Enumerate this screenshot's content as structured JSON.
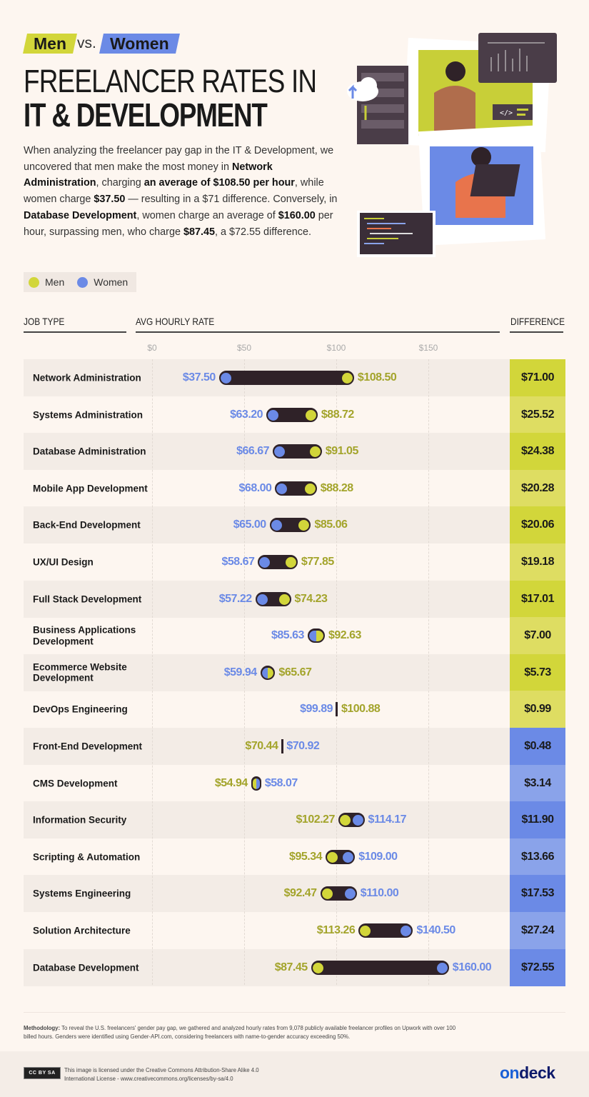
{
  "header": {
    "tag_men": "Men",
    "tag_vs": "vs.",
    "tag_women": "Women",
    "title_line1": "FREELANCER RATES IN",
    "title_line2": "IT & DEVELOPMENT"
  },
  "intro": {
    "p1": "When analyzing the freelancer pay gap in the IT & Development, we uncovered that men make the most money in ",
    "b1": "Network Administration",
    "p2": ", charging ",
    "b2": "an average of $108.50 per hour",
    "p3": ", while women charge ",
    "b3": "$37.50",
    "p4": " — resulting in a $71 difference. Conversely, in ",
    "b4": "Database Development",
    "p5": ", women charge an average of ",
    "b5": "$160.00",
    "p6": " per hour, surpassing men, who charge ",
    "b6": "$87.45",
    "p7": ", a $72.55 difference."
  },
  "colors": {
    "men": "#d2d63a",
    "men_light": "#dedd62",
    "men_text": "#a3a42b",
    "women": "#6b8ae6",
    "women_light": "#8aa3ea",
    "bar": "#2f2228"
  },
  "chart_data": {
    "type": "dumbbell",
    "legend": [
      "Men",
      "Women"
    ],
    "legend_position": "top-left",
    "columns": {
      "job": "JOB TYPE",
      "rate": "AVG HOURLY RATE",
      "diff": "DIFFERENCE"
    },
    "x_ticks": [
      "$0",
      "$50",
      "$100",
      "$150"
    ],
    "x_tick_values": [
      0,
      50,
      100,
      150
    ],
    "xlim": [
      0,
      175
    ],
    "grid": true,
    "rows": [
      {
        "job": "Network Administration",
        "men": 108.5,
        "women": 37.5,
        "men_label": "$108.50",
        "women_label": "$37.50",
        "diff": "$71.00",
        "higher": "men"
      },
      {
        "job": "Systems Administration",
        "men": 88.72,
        "women": 63.2,
        "men_label": "$88.72",
        "women_label": "$63.20",
        "diff": "$25.52",
        "higher": "men"
      },
      {
        "job": "Database Administration",
        "men": 91.05,
        "women": 66.67,
        "men_label": "$91.05",
        "women_label": "$66.67",
        "diff": "$24.38",
        "higher": "men"
      },
      {
        "job": "Mobile App Development",
        "men": 88.28,
        "women": 68.0,
        "men_label": "$88.28",
        "women_label": "$68.00",
        "diff": "$20.28",
        "higher": "men"
      },
      {
        "job": "Back-End Development",
        "men": 85.06,
        "women": 65.0,
        "men_label": "$85.06",
        "women_label": "$65.00",
        "diff": "$20.06",
        "higher": "men"
      },
      {
        "job": "UX/UI Design",
        "men": 77.85,
        "women": 58.67,
        "men_label": "$77.85",
        "women_label": "$58.67",
        "diff": "$19.18",
        "higher": "men"
      },
      {
        "job": "Full Stack Development",
        "men": 74.23,
        "women": 57.22,
        "men_label": "$74.23",
        "women_label": "$57.22",
        "diff": "$17.01",
        "higher": "men"
      },
      {
        "job": "Business Applications Development",
        "men": 92.63,
        "women": 85.63,
        "men_label": "$92.63",
        "women_label": "$85.63",
        "diff": "$7.00",
        "higher": "men"
      },
      {
        "job": "Ecommerce Website Development",
        "men": 65.67,
        "women": 59.94,
        "men_label": "$65.67",
        "women_label": "$59.94",
        "diff": "$5.73",
        "higher": "men"
      },
      {
        "job": "DevOps Engineering",
        "men": 100.88,
        "women": 99.89,
        "men_label": "$100.88",
        "women_label": "$99.89",
        "diff": "$0.99",
        "higher": "men"
      },
      {
        "job": "Front-End Development",
        "men": 70.44,
        "women": 70.92,
        "men_label": "$70.44",
        "women_label": "$70.92",
        "diff": "$0.48",
        "higher": "women"
      },
      {
        "job": "CMS Development",
        "men": 54.94,
        "women": 58.07,
        "men_label": "$54.94",
        "women_label": "$58.07",
        "diff": "$3.14",
        "higher": "women"
      },
      {
        "job": "Information Security",
        "men": 102.27,
        "women": 114.17,
        "men_label": "$102.27",
        "women_label": "$114.17",
        "diff": "$11.90",
        "higher": "women"
      },
      {
        "job": "Scripting & Automation",
        "men": 95.34,
        "women": 109.0,
        "men_label": "$95.34",
        "women_label": "$109.00",
        "diff": "$13.66",
        "higher": "women"
      },
      {
        "job": "Systems Engineering",
        "men": 92.47,
        "women": 110.0,
        "men_label": "$92.47",
        "women_label": "$110.00",
        "diff": "$17.53",
        "higher": "women"
      },
      {
        "job": "Solution Architecture",
        "men": 113.26,
        "women": 140.5,
        "men_label": "$113.26",
        "women_label": "$140.50",
        "diff": "$27.24",
        "higher": "women"
      },
      {
        "job": "Database Development",
        "men": 87.45,
        "women": 160.0,
        "men_label": "$87.45",
        "women_label": "$160.00",
        "diff": "$72.55",
        "higher": "women"
      }
    ]
  },
  "methodology": {
    "label": "Methodology:",
    "text": " To reveal the U.S. freelancers' gender pay gap, we gathered and analyzed hourly rates from 9,078 publicly available freelancer profiles on Upwork with over 100 billed hours. Genders were identified using Gender-API.com, considering freelancers with name-to-gender accuracy exceeding 50%."
  },
  "footer": {
    "license_line1": "This image is licensed under the Creative Commons Attribution-Share Alike 4.0",
    "license_line2": "International License - www.creativecommons.org/licenses/by-sa/4.0",
    "cc_badge": "cc by sa",
    "brand_on": "on",
    "brand_deck": "deck"
  },
  "illustration": {
    "icons": [
      "cloud-sync-icon",
      "server-rack-icon",
      "code-tag-icon",
      "laptop-icon",
      "code-editor-icon"
    ]
  }
}
